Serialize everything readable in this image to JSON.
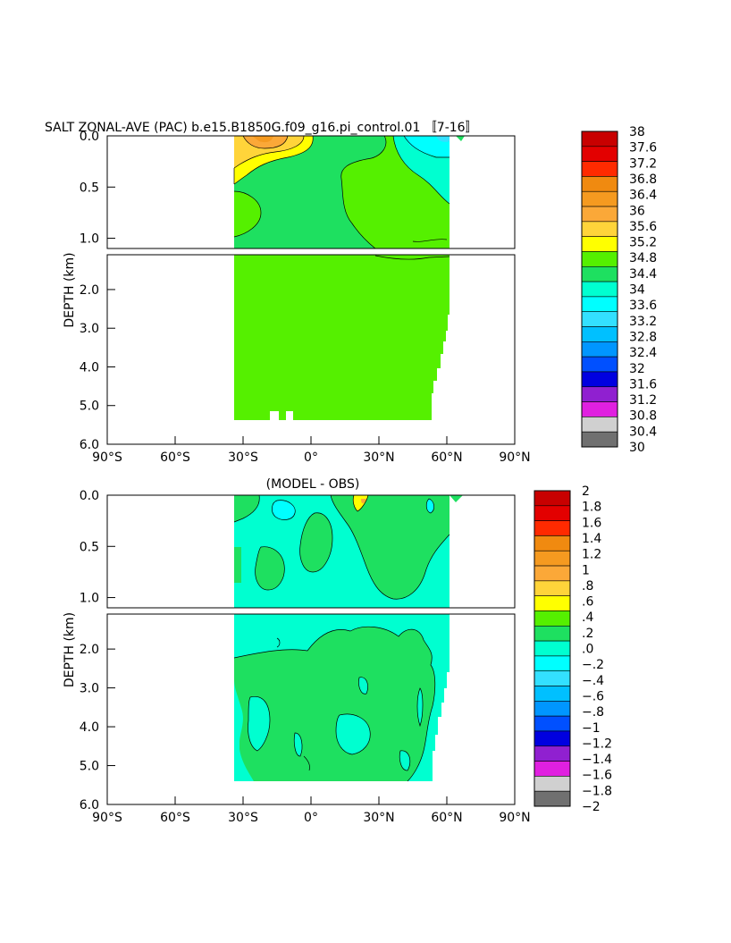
{
  "title": "SALT ZONAL-AVE (PAC) b.e15.B1850G.f09_g16.pi_control.01 〚7-16〛",
  "chart_data": [
    {
      "type": "heatmap",
      "panel": "top",
      "title": "",
      "xlabel": "",
      "ylabel": "DEPTH (km)",
      "x_ticks": [
        "90°S",
        "60°S",
        "30°S",
        "0°",
        "30°N",
        "60°N",
        "90°N"
      ],
      "x_tick_values": [
        -90,
        -60,
        -30,
        0,
        30,
        60,
        90
      ],
      "xlim": [
        -90,
        90
      ],
      "y_ticks_upper": [
        "0.0",
        "0.5",
        "1.0"
      ],
      "y_ticks_lower": [
        "2.0",
        "3.0",
        "4.0",
        "5.0",
        "6.0"
      ],
      "ylim_upper": [
        0,
        1.1
      ],
      "ylim_lower": [
        1.1,
        6.0
      ],
      "data_extent_lat": [
        -34,
        62
      ],
      "colorbar": {
        "labels": [
          "38",
          "37.6",
          "37.2",
          "36.8",
          "36.4",
          "36",
          "35.6",
          "35.2",
          "34.8",
          "34.4",
          "34",
          "33.6",
          "33.2",
          "32.8",
          "32.4",
          "32",
          "31.6",
          "31.2",
          "30.8",
          "30.4",
          "30"
        ],
        "colors": [
          "#c80000",
          "#e30000",
          "#ff2a00",
          "#f08a10",
          "#f59a20",
          "#fba838",
          "#ffd43a",
          "#ffff00",
          "#55f000",
          "#1ee060",
          "#00ffd0",
          "#00ffff",
          "#33e0ff",
          "#00c0ff",
          "#0096ff",
          "#0050ff",
          "#0000e0",
          "#9020d0",
          "#e020e0",
          "#d0d0d0",
          "#707070"
        ],
        "color_for_range": "index i covers values between labels i+1 and i (from top)"
      },
      "features": [
        {
          "region": "upper ocean 30S-10S",
          "value_range": [
            34.8,
            35.6
          ]
        },
        {
          "region": "near-surface 40N-62N",
          "value_range": [
            33.2,
            34.0
          ]
        },
        {
          "region": "bulk interior",
          "value_range": [
            34.4,
            34.8
          ]
        }
      ]
    },
    {
      "type": "heatmap",
      "panel": "bottom",
      "title": "(MODEL - OBS)",
      "xlabel": "",
      "ylabel": "DEPTH (km)",
      "x_ticks": [
        "90°S",
        "60°S",
        "30°S",
        "0°",
        "30°N",
        "60°N",
        "90°N"
      ],
      "x_tick_values": [
        -90,
        -60,
        -30,
        0,
        30,
        60,
        90
      ],
      "xlim": [
        -90,
        90
      ],
      "y_ticks_upper": [
        "0.0",
        "0.5",
        "1.0"
      ],
      "y_ticks_lower": [
        "2.0",
        "3.0",
        "4.0",
        "5.0",
        "6.0"
      ],
      "ylim_upper": [
        0,
        1.1
      ],
      "ylim_lower": [
        1.1,
        6.0
      ],
      "data_extent_lat": [
        -34,
        62
      ],
      "colorbar": {
        "labels": [
          "2",
          "1.8",
          "1.6",
          "1.4",
          "1.2",
          "1",
          ".8",
          ".6",
          ".4",
          ".2",
          ".0",
          "−.2",
          "−.4",
          "−.6",
          "−.8",
          "−1",
          "−1.2",
          "−1.4",
          "−1.6",
          "−1.8",
          "−2"
        ],
        "colors": [
          "#c80000",
          "#e30000",
          "#ff2a00",
          "#f08a10",
          "#f59a20",
          "#fba838",
          "#ffd43a",
          "#ffff00",
          "#55f000",
          "#1ee060",
          "#00ffd0",
          "#00ffff",
          "#33e0ff",
          "#00c0ff",
          "#0096ff",
          "#0050ff",
          "#0000e0",
          "#9020d0",
          "#e020e0",
          "#d0d0d0",
          "#707070"
        ],
        "color_for_range": "index i covers values between labels i+1 and i (from top)"
      },
      "features": [
        {
          "region": "background",
          "value_range": [
            -0.2,
            0.0
          ]
        },
        {
          "region": "mid-latitude columns",
          "value_range": [
            0.0,
            0.2
          ]
        },
        {
          "region": "surface ~25N",
          "value_range": [
            0.4,
            0.8
          ]
        }
      ]
    }
  ]
}
